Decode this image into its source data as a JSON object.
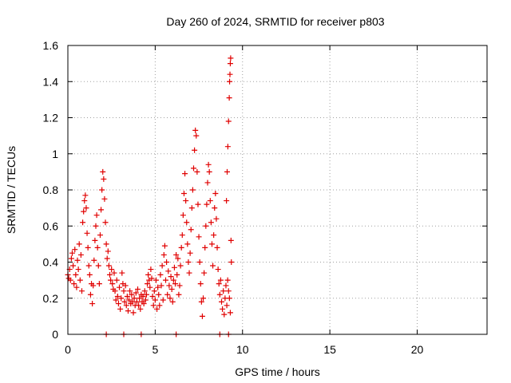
{
  "chart_data": {
    "type": "scatter",
    "title": "Day 260 of 2024, SRMTID for receiver p803",
    "xlabel": "GPS time / hours",
    "ylabel": "SRMTID / TECUs",
    "xlim": [
      0,
      24
    ],
    "ylim": [
      0,
      1.6
    ],
    "xticks": [
      0,
      5,
      10,
      15,
      20
    ],
    "xtick_labels": [
      "0",
      "5",
      "10",
      "15",
      "20"
    ],
    "yticks": [
      0,
      0.2,
      0.4,
      0.6,
      0.8,
      1.0,
      1.2,
      1.4,
      1.6
    ],
    "ytick_labels": [
      "0",
      "0.2",
      "0.4",
      "0.6",
      "0.8",
      "1",
      "1.2",
      "1.4",
      "1.6"
    ],
    "grid": true,
    "marker": "plus",
    "color": "#e00000",
    "series": [
      {
        "name": "srmtid",
        "points": [
          [
            0.0,
            0.33
          ],
          [
            0.05,
            0.31
          ],
          [
            0.1,
            0.36
          ],
          [
            0.15,
            0.3
          ],
          [
            0.2,
            0.42
          ],
          [
            0.25,
            0.45
          ],
          [
            0.3,
            0.38
          ],
          [
            0.35,
            0.28
          ],
          [
            0.4,
            0.47
          ],
          [
            0.45,
            0.33
          ],
          [
            0.5,
            0.26
          ],
          [
            0.55,
            0.41
          ],
          [
            0.6,
            0.36
          ],
          [
            0.65,
            0.5
          ],
          [
            0.7,
            0.3
          ],
          [
            0.75,
            0.44
          ],
          [
            0.8,
            0.24
          ],
          [
            0.85,
            0.62
          ],
          [
            0.9,
            0.68
          ],
          [
            0.95,
            0.74
          ],
          [
            1.0,
            0.77
          ],
          [
            1.05,
            0.7
          ],
          [
            1.1,
            0.56
          ],
          [
            1.15,
            0.48
          ],
          [
            1.2,
            0.38
          ],
          [
            1.25,
            0.33
          ],
          [
            1.3,
            0.22
          ],
          [
            1.35,
            0.28
          ],
          [
            1.4,
            0.17
          ],
          [
            1.45,
            0.27
          ],
          [
            1.5,
            0.41
          ],
          [
            1.55,
            0.52
          ],
          [
            1.6,
            0.6
          ],
          [
            1.65,
            0.66
          ],
          [
            1.7,
            0.48
          ],
          [
            1.75,
            0.38
          ],
          [
            1.8,
            0.28
          ],
          [
            1.85,
            0.55
          ],
          [
            1.9,
            0.69
          ],
          [
            1.95,
            0.8
          ],
          [
            2.0,
            0.9
          ],
          [
            2.05,
            0.86
          ],
          [
            2.1,
            0.75
          ],
          [
            2.15,
            0.62
          ],
          [
            2.2,
            0.5
          ],
          [
            2.25,
            0.42
          ],
          [
            2.3,
            0.46
          ],
          [
            2.35,
            0.38
          ],
          [
            2.4,
            0.33
          ],
          [
            2.45,
            0.3
          ],
          [
            2.5,
            0.36
          ],
          [
            2.55,
            0.28
          ],
          [
            2.6,
            0.25
          ],
          [
            2.65,
            0.34
          ],
          [
            2.7,
            0.24
          ],
          [
            2.75,
            0.19
          ],
          [
            2.8,
            0.3
          ],
          [
            2.85,
            0.21
          ],
          [
            2.9,
            0.17
          ],
          [
            2.95,
            0.26
          ],
          [
            3.0,
            0.14
          ],
          [
            3.05,
            0.2
          ],
          [
            3.1,
            0.34
          ],
          [
            3.15,
            0.28
          ],
          [
            3.2,
            0.24
          ],
          [
            3.25,
            0.18
          ],
          [
            3.3,
            0.27
          ],
          [
            3.35,
            0.16
          ],
          [
            3.4,
            0.21
          ],
          [
            3.45,
            0.13
          ],
          [
            3.5,
            0.19
          ],
          [
            3.55,
            0.24
          ],
          [
            3.6,
            0.17
          ],
          [
            3.65,
            0.22
          ],
          [
            3.7,
            0.18
          ],
          [
            3.75,
            0.12
          ],
          [
            3.8,
            0.2
          ],
          [
            3.85,
            0.16
          ],
          [
            3.9,
            0.23
          ],
          [
            3.95,
            0.18
          ],
          [
            4.0,
            0.25
          ],
          [
            4.05,
            0.16
          ],
          [
            4.1,
            0.2
          ],
          [
            4.15,
            0.14
          ],
          [
            4.2,
            0.22
          ],
          [
            4.25,
            0.18
          ],
          [
            4.3,
            0.21
          ],
          [
            4.35,
            0.17
          ],
          [
            4.4,
            0.24
          ],
          [
            4.45,
            0.19
          ],
          [
            4.5,
            0.22
          ],
          [
            4.55,
            0.28
          ],
          [
            4.6,
            0.33
          ],
          [
            4.65,
            0.3
          ],
          [
            4.7,
            0.26
          ],
          [
            4.75,
            0.36
          ],
          [
            4.8,
            0.31
          ],
          [
            4.85,
            0.21
          ],
          [
            4.9,
            0.16
          ],
          [
            4.95,
            0.24
          ],
          [
            5.0,
            0.19
          ],
          [
            5.05,
            0.3
          ],
          [
            5.1,
            0.14
          ],
          [
            5.15,
            0.26
          ],
          [
            5.2,
            0.22
          ],
          [
            5.25,
            0.16
          ],
          [
            5.3,
            0.33
          ],
          [
            5.35,
            0.27
          ],
          [
            5.4,
            0.38
          ],
          [
            5.45,
            0.19
          ],
          [
            5.5,
            0.44
          ],
          [
            5.55,
            0.49
          ],
          [
            5.6,
            0.3
          ],
          [
            5.65,
            0.4
          ],
          [
            5.7,
            0.22
          ],
          [
            5.75,
            0.35
          ],
          [
            5.8,
            0.27
          ],
          [
            5.85,
            0.2
          ],
          [
            5.9,
            0.32
          ],
          [
            5.95,
            0.25
          ],
          [
            6.0,
            0.18
          ],
          [
            6.05,
            0.3
          ],
          [
            6.1,
            0.37
          ],
          [
            6.15,
            0.28
          ],
          [
            6.2,
            0.44
          ],
          [
            6.25,
            0.33
          ],
          [
            6.3,
            0.42
          ],
          [
            6.35,
            0.22
          ],
          [
            6.4,
            0.27
          ],
          [
            6.45,
            0.38
          ],
          [
            6.5,
            0.48
          ],
          [
            6.55,
            0.55
          ],
          [
            6.6,
            0.66
          ],
          [
            6.65,
            0.78
          ],
          [
            6.7,
            0.89
          ],
          [
            6.75,
            0.74
          ],
          [
            6.8,
            0.62
          ],
          [
            6.85,
            0.5
          ],
          [
            6.9,
            0.4
          ],
          [
            6.95,
            0.34
          ],
          [
            7.0,
            0.45
          ],
          [
            7.05,
            0.58
          ],
          [
            7.1,
            0.7
          ],
          [
            7.15,
            0.8
          ],
          [
            7.2,
            0.92
          ],
          [
            7.25,
            1.02
          ],
          [
            7.3,
            1.13
          ],
          [
            7.35,
            1.1
          ],
          [
            7.4,
            0.9
          ],
          [
            7.45,
            0.72
          ],
          [
            7.5,
            0.54
          ],
          [
            7.55,
            0.4
          ],
          [
            7.6,
            0.28
          ],
          [
            7.65,
            0.18
          ],
          [
            7.7,
            0.1
          ],
          [
            7.75,
            0.2
          ],
          [
            7.8,
            0.34
          ],
          [
            7.85,
            0.48
          ],
          [
            7.9,
            0.6
          ],
          [
            7.95,
            0.72
          ],
          [
            8.0,
            0.84
          ],
          [
            8.05,
            0.94
          ],
          [
            8.1,
            0.9
          ],
          [
            8.15,
            0.74
          ],
          [
            8.2,
            0.62
          ],
          [
            8.25,
            0.5
          ],
          [
            8.3,
            0.38
          ],
          [
            8.35,
            0.55
          ],
          [
            8.4,
            0.7
          ],
          [
            8.45,
            0.78
          ],
          [
            8.5,
            0.64
          ],
          [
            8.55,
            0.48
          ],
          [
            8.6,
            0.36
          ],
          [
            8.65,
            0.28
          ],
          [
            8.7,
            0.22
          ],
          [
            8.75,
            0.3
          ],
          [
            8.8,
            0.18
          ],
          [
            8.85,
            0.14
          ],
          [
            8.9,
            0.24
          ],
          [
            8.95,
            0.11
          ],
          [
            9.0,
            0.2
          ],
          [
            9.05,
            0.27
          ],
          [
            9.1,
            0.16
          ],
          [
            9.15,
            0.3
          ],
          [
            9.2,
            0.24
          ],
          [
            9.25,
            0.2
          ],
          [
            9.3,
            0.12
          ],
          [
            9.08,
            0.74
          ],
          [
            9.12,
            0.9
          ],
          [
            9.16,
            1.04
          ],
          [
            9.2,
            1.18
          ],
          [
            9.24,
            1.31
          ],
          [
            9.26,
            1.4
          ],
          [
            9.28,
            1.44
          ],
          [
            9.3,
            1.5
          ],
          [
            9.32,
            1.53
          ],
          [
            9.34,
            0.52
          ],
          [
            9.36,
            0.4
          ],
          [
            2.2,
            0.0
          ],
          [
            3.2,
            0.0
          ],
          [
            4.2,
            0.0
          ],
          [
            6.2,
            0.0
          ],
          [
            8.7,
            0.0
          ],
          [
            9.2,
            0.0
          ]
        ]
      }
    ]
  }
}
